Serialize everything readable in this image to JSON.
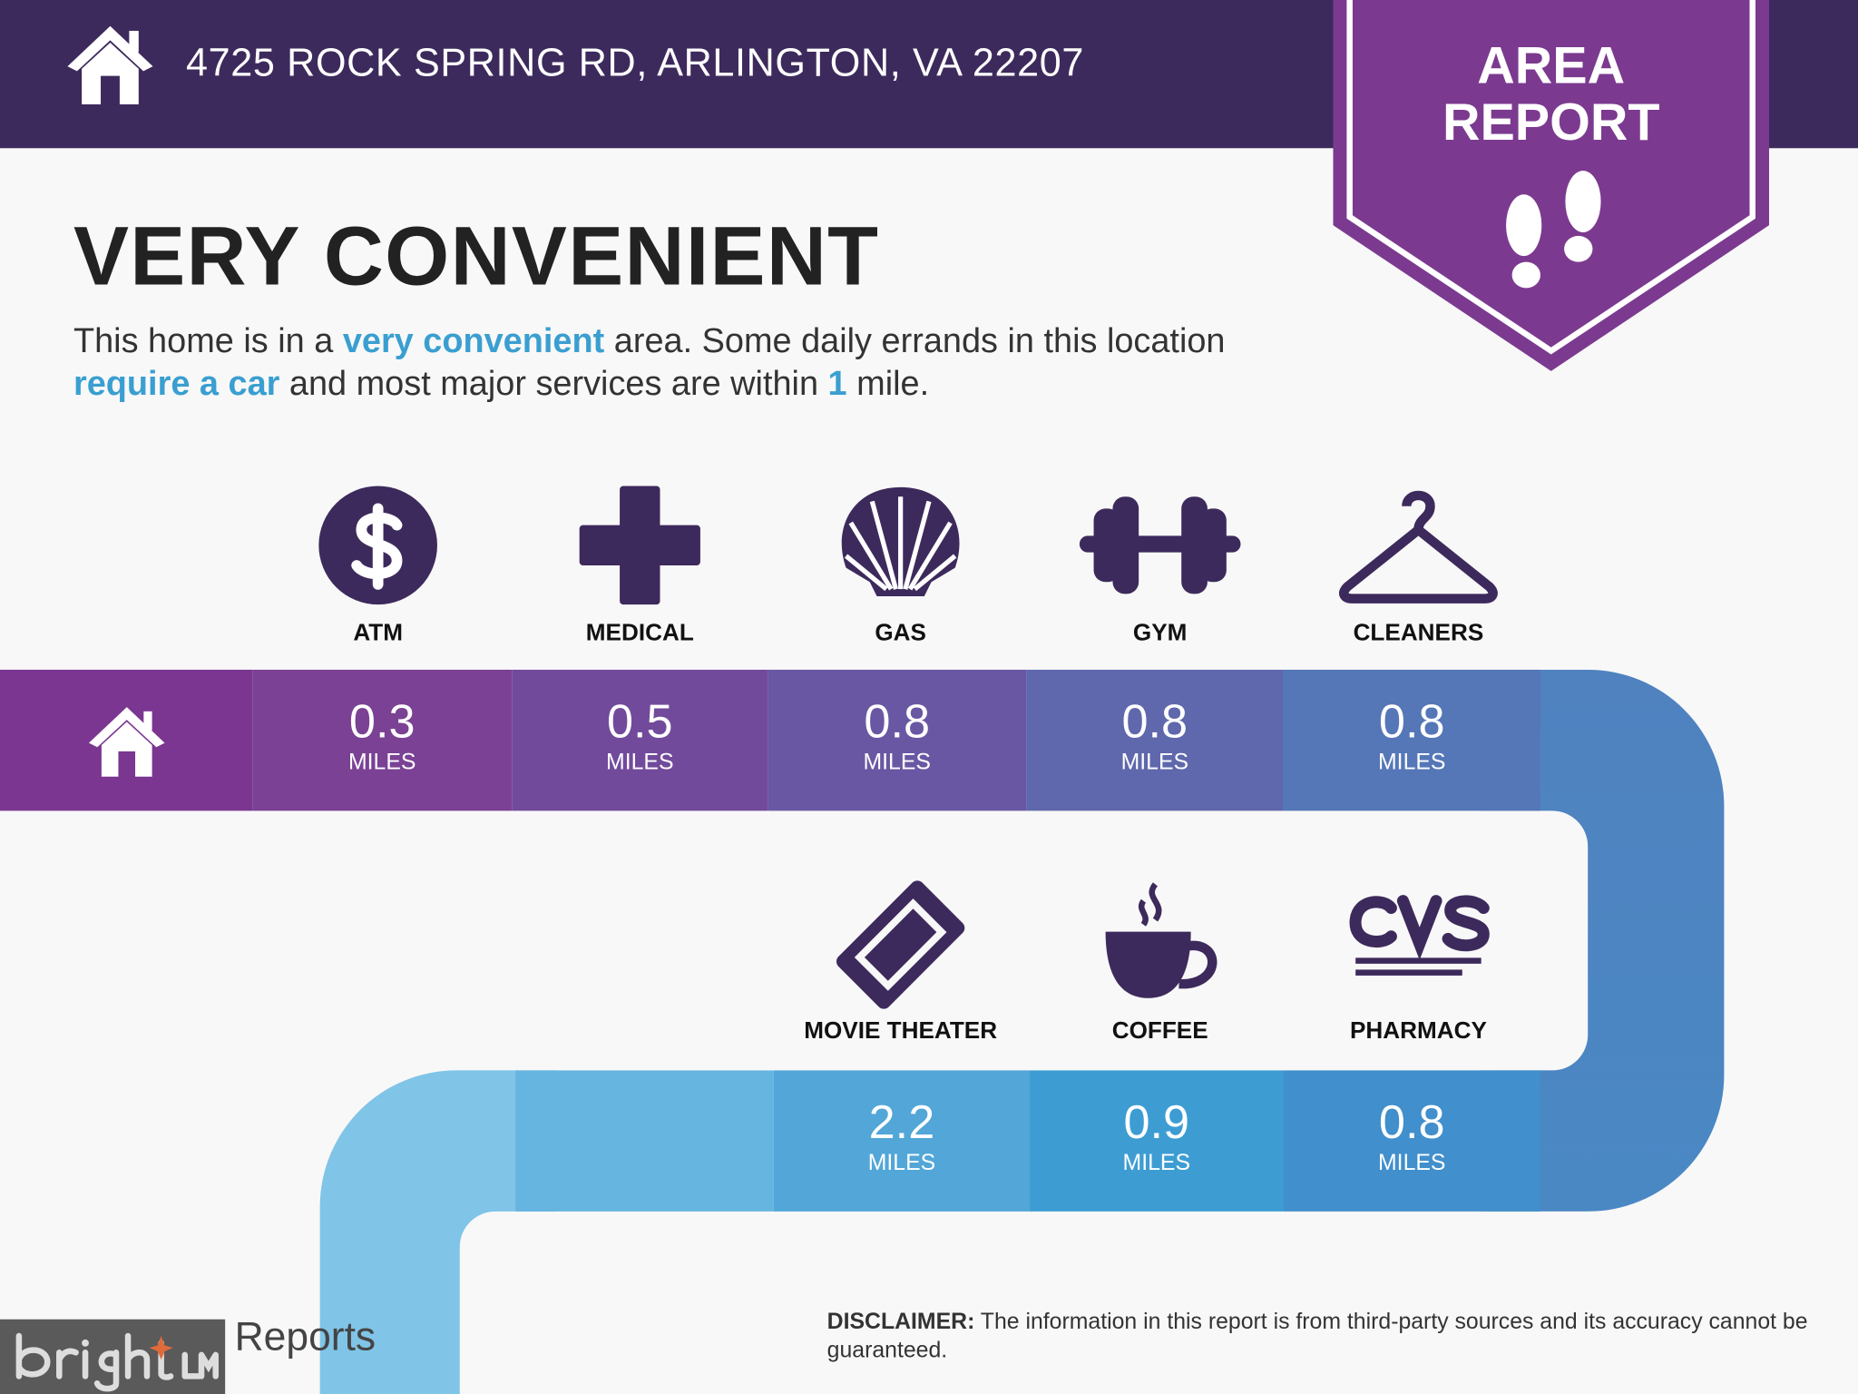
{
  "header": {
    "address": "4725 ROCK SPRING RD, ARLINGTON, VA 22207",
    "home_icon": "house-icon"
  },
  "badge": {
    "line1": "AREA",
    "line2": "REPORT",
    "icon": "footprints-icon",
    "color": "#7b3a8f"
  },
  "title": "VERY CONVENIENT",
  "description": {
    "p1": "This home is in a ",
    "h1": "very convenient",
    "p2": " area. Some daily errands in this location ",
    "h2": "require a car",
    "p3": " and most major services are within ",
    "h3": "1",
    "p4": " mile."
  },
  "colors": {
    "header": "#3d2a5c",
    "accent": "#3a9fd0",
    "icon": "#3d2a5c"
  },
  "amenities_row1": [
    {
      "label": "ATM",
      "icon": "dollar-icon",
      "value": "0.3",
      "unit": "MILES"
    },
    {
      "label": "MEDICAL",
      "icon": "medical-cross-icon",
      "value": "0.5",
      "unit": "MILES"
    },
    {
      "label": "GAS",
      "icon": "shell-icon",
      "value": "0.8",
      "unit": "MILES"
    },
    {
      "label": "GYM",
      "icon": "dumbbell-icon",
      "value": "0.8",
      "unit": "MILES"
    },
    {
      "label": "CLEANERS",
      "icon": "hanger-icon",
      "value": "0.8",
      "unit": "MILES"
    }
  ],
  "amenities_row2": [
    {
      "label": "MOVIE THEATER",
      "icon": "ticket-icon",
      "value": "2.2",
      "unit": "MILES"
    },
    {
      "label": "COFFEE",
      "icon": "coffee-cup-icon",
      "value": "0.9",
      "unit": "MILES"
    },
    {
      "label": "PHARMACY",
      "icon": "cvs-pharmacy-logo",
      "logo_text": "CVS pharmacy",
      "value": "0.8",
      "unit": "MILES"
    }
  ],
  "disclaimer": {
    "label": "DISCLAIMER:",
    "text": " The information in this report is from third-party sources and its accuracy cannot be guaranteed."
  },
  "footer": {
    "reports_logo": "Reports",
    "watermark": "bright MLS"
  }
}
